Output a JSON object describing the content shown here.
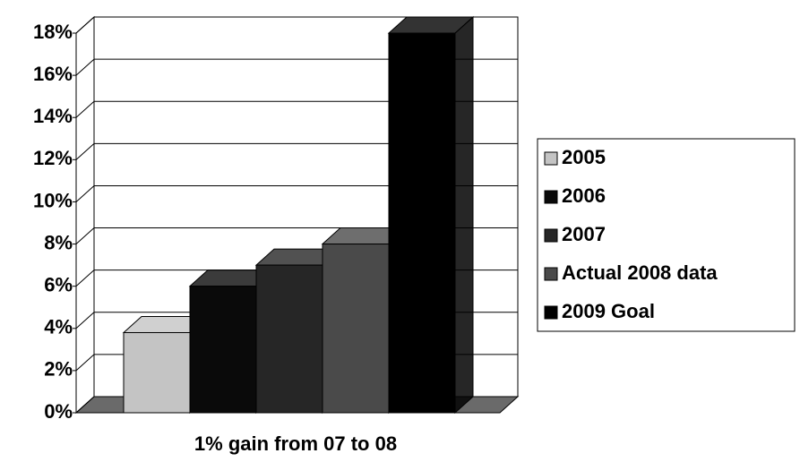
{
  "chart_data": {
    "type": "bar3d",
    "x_label": "1% gain from 07 to 08",
    "series": [
      {
        "name": "2005",
        "color": "#c4c4c4",
        "values": [
          3.8
        ]
      },
      {
        "name": "2006",
        "color": "#0a0a0a",
        "values": [
          6
        ]
      },
      {
        "name": "2007",
        "color": "#262626",
        "values": [
          7
        ]
      },
      {
        "name": "Actual 2008 data",
        "color": "#4a4a4a",
        "values": [
          8
        ]
      },
      {
        "name": "2009 Goal",
        "color": "#000000",
        "values": [
          18
        ]
      }
    ],
    "ylim": [
      0,
      18
    ],
    "yticks": [
      {
        "value": 0,
        "label": "0%"
      },
      {
        "value": 2,
        "label": "2%"
      },
      {
        "value": 4,
        "label": "4%"
      },
      {
        "value": 6,
        "label": "6%"
      },
      {
        "value": 8,
        "label": "8%"
      },
      {
        "value": 10,
        "label": "10%"
      },
      {
        "value": 12,
        "label": "12%"
      },
      {
        "value": 14,
        "label": "14%"
      },
      {
        "value": 16,
        "label": "16%"
      },
      {
        "value": 18,
        "label": "18%"
      }
    ],
    "grid": true,
    "legend": "right"
  }
}
